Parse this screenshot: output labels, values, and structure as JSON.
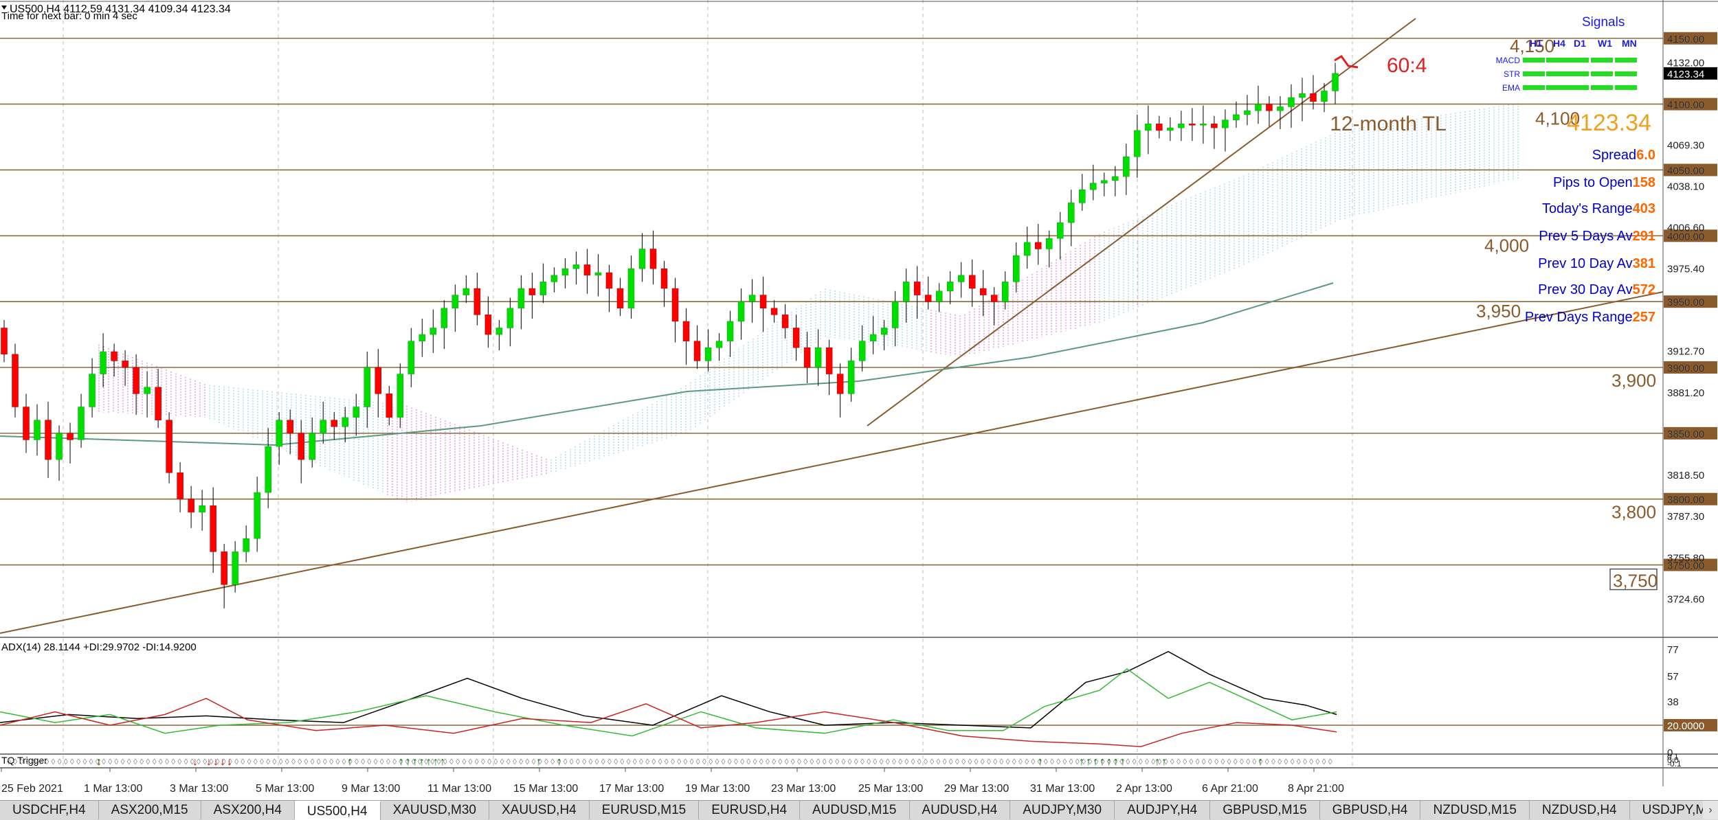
{
  "header": {
    "symbol_line": "US500,H4  4112.59 4131.34 4109.34 4123.34",
    "timer_line": "Time for next bar: 0 min 4 sec"
  },
  "price_axis": {
    "min": 3695,
    "max": 4177,
    "labels": [
      "4150.00",
      "4132.00",
      "4100.00",
      "4069.30",
      "4050.00",
      "4038.10",
      "4006.60",
      "4000.00",
      "3975.40",
      "3950.00",
      "3912.70",
      "3900.00",
      "3881.20",
      "3850.00",
      "3818.50",
      "3800.00",
      "3787.30",
      "3755.80",
      "3750.00",
      "3724.60"
    ],
    "current_price_label": "4123.34"
  },
  "levels": {
    "prices": [
      4150,
      4100,
      4050,
      4000,
      3950,
      3900,
      3850,
      3800,
      3750
    ],
    "labels": [
      "4,150",
      "4,100",
      "4,000",
      "3,950",
      "3,900",
      "3,800",
      "3,750"
    ],
    "line_color": "#8b6a3e"
  },
  "annotations": {
    "trendline_label": "12-month TL",
    "signal_note": "60:4",
    "big_price": "4123.34"
  },
  "signals_panel": {
    "title": "Signals",
    "timeframes": [
      "H1",
      "H4",
      "D1",
      "W1",
      "MN"
    ],
    "rows": [
      "MACD",
      "STR",
      "EMA"
    ],
    "color": "#22dd22"
  },
  "stats": [
    {
      "label": "Spread",
      "value": "6.0"
    },
    {
      "label": "Pips to Open",
      "value": "158"
    },
    {
      "label": "Today's Range",
      "value": "403"
    },
    {
      "label": "Prev 5 Days Av",
      "value": "291"
    },
    {
      "label": "Prev 10 Day Av",
      "value": "381"
    },
    {
      "label": "Prev 30 Day Av",
      "value": "572"
    },
    {
      "label": "Prev Days Range",
      "value": "257"
    }
  ],
  "colors": {
    "bull": "#00dd00",
    "bear": "#ff0000",
    "stats_label": "#0000cc",
    "stats_value": "#ff6600",
    "big_price": "#f0a020",
    "ma": "#5a9a80",
    "adx": "#000000",
    "plus_di": "#33bb33",
    "minus_di": "#cc2222"
  },
  "adx_panel": {
    "title": "ADX(14) 28.1144 +DI:29.9702 -DI:14.9200",
    "axis_labels": [
      "77",
      "57",
      "38",
      "20.0000",
      "0"
    ],
    "level": 20
  },
  "tms_panel": {
    "title": "TQ Trigger",
    "axis_labels": [
      "0.1",
      "0.0",
      "-0.1"
    ]
  },
  "time_axis": {
    "labels": [
      "25 Feb 2021",
      "1 Mar 13:00",
      "3 Mar 13:00",
      "5 Mar 13:00",
      "9 Mar 13:00",
      "11 Mar 13:00",
      "15 Mar 13:00",
      "17 Mar 13:00",
      "19 Mar 13:00",
      "23 Mar 13:00",
      "25 Mar 13:00",
      "29 Mar 13:00",
      "31 Mar 13:00",
      "2 Apr 13:00",
      "6 Apr 21:00",
      "8 Apr 21:00"
    ]
  },
  "chart_data": {
    "type": "candlestick",
    "title": "US500,H4",
    "timeframe": "H4",
    "ohlc_last": {
      "open": 4112.59,
      "high": 4131.34,
      "low": 4109.34,
      "close": 4123.34
    },
    "closes_approx": [
      3910,
      3870,
      3845,
      3860,
      3830,
      3850,
      3845,
      3870,
      3895,
      3912,
      3905,
      3900,
      3880,
      3885,
      3860,
      3820,
      3800,
      3790,
      3795,
      3760,
      3735,
      3760,
      3770,
      3805,
      3840,
      3860,
      3850,
      3830,
      3850,
      3860,
      3855,
      3862,
      3870,
      3900,
      3880,
      3862,
      3895,
      3920,
      3925,
      3930,
      3945,
      3955,
      3960,
      3940,
      3925,
      3930,
      3945,
      3960,
      3955,
      3965,
      3970,
      3975,
      3978,
      3970,
      3972,
      3960,
      3945,
      3975,
      3990,
      3975,
      3960,
      3935,
      3920,
      3905,
      3915,
      3920,
      3935,
      3950,
      3955,
      3945,
      3940,
      3930,
      3915,
      3900,
      3915,
      3895,
      3880,
      3905,
      3920,
      3925,
      3930,
      3950,
      3965,
      3955,
      3950,
      3958,
      3965,
      3970,
      3960,
      3955,
      3950,
      3965,
      3985,
      3995,
      3990,
      3998,
      4010,
      4025,
      4035,
      4040,
      4042,
      4045,
      4060,
      4080,
      4085,
      4080,
      4082,
      4085,
      4084,
      4085,
      4082,
      4088,
      4092,
      4095,
      4100,
      4095,
      4098,
      4105,
      4108,
      4102,
      4110,
      4123.34
    ]
  },
  "tabs": [
    "USDCHF,H4",
    "ASX200,M15",
    "ASX200,H4",
    "US500,H4",
    "XAUUSD,M30",
    "XAUUSD,H4",
    "EURUSD,M15",
    "EURUSD,H4",
    "AUDUSD,M15",
    "AUDUSD,H4",
    "AUDJPY,M30",
    "AUDJPY,H4",
    "GBPUSD,M15",
    "GBPUSD,H4",
    "NZDUSD,M15",
    "NZDUSD,H4",
    "USDJPY,M30",
    "US"
  ],
  "active_tab": "US500,H4"
}
